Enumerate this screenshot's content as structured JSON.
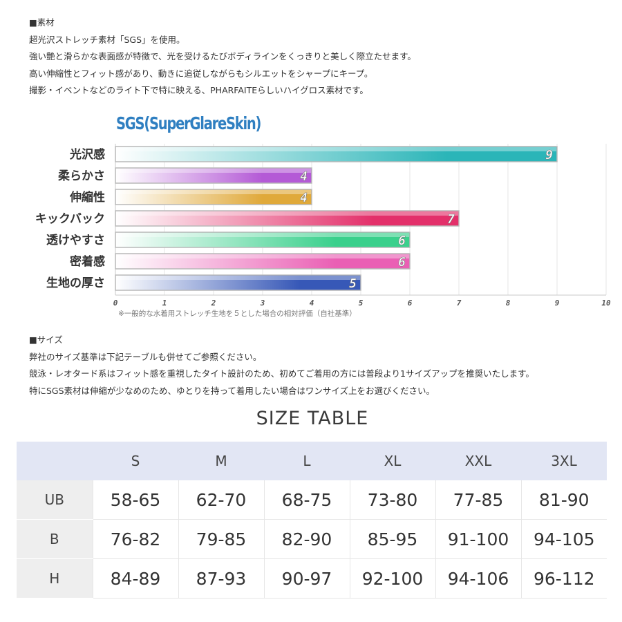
{
  "material": {
    "heading": "■素材",
    "lines": [
      "超光沢ストレッチ素材「SGS」を使用。",
      "強い艶と滑らかな表面感が特徴で、光を受けるたびボディラインをくっきりと美しく際立たせます。",
      "高い伸縮性とフィット感があり、動きに追従しながらもシルエットをシャープにキープ。",
      "撮影・イベントなどのライト下で特に映える、PHARFAITEらしいハイグロス素材です。"
    ]
  },
  "chart_data": {
    "type": "bar",
    "orientation": "horizontal",
    "title": "SGS(SuperGlareSkin)",
    "categories": [
      "光沢感",
      "柔らかさ",
      "伸縮性",
      "キックバック",
      "透けやすさ",
      "密着感",
      "生地の厚さ"
    ],
    "values": [
      9,
      4,
      4,
      7,
      6,
      6,
      5
    ],
    "bar_colors": [
      "#2bb5b8",
      "#b45ad6",
      "#e0a93a",
      "#e3306a",
      "#3ad08c",
      "#ea5fb4",
      "#3758b7"
    ],
    "xlim": [
      0,
      10
    ],
    "x_ticks": [
      0,
      1,
      2,
      3,
      4,
      5,
      6,
      7,
      8,
      9,
      10
    ],
    "grid": true,
    "note": "※一般的な水着用ストレッチ生地を５とした場合の相対評価（自社基準）"
  },
  "size": {
    "heading": "■サイズ",
    "lines": [
      "弊社のサイズ基準は下記テーブルも併せてご参照ください。",
      "競泳・レオタード系はフィット感を重視したタイト設計のため、初めてご着用の方には普段より1サイズアップを推奨いたします。",
      "特にSGS素材は伸縮が少なめのため、ゆとりを持って着用したい場合はワンサイズ上をお選びください。"
    ]
  },
  "size_table": {
    "title": "SIZE TABLE",
    "columns": [
      "S",
      "M",
      "L",
      "XL",
      "XXL",
      "3XL"
    ],
    "rows": [
      {
        "label": "UB",
        "values": [
          "58-65",
          "62-70",
          "68-75",
          "73-80",
          "77-85",
          "81-90"
        ]
      },
      {
        "label": "B",
        "values": [
          "76-82",
          "79-85",
          "82-90",
          "85-95",
          "91-100",
          "94-105"
        ]
      },
      {
        "label": "H",
        "values": [
          "84-89",
          "87-93",
          "90-97",
          "92-100",
          "94-106",
          "96-112"
        ]
      }
    ]
  }
}
